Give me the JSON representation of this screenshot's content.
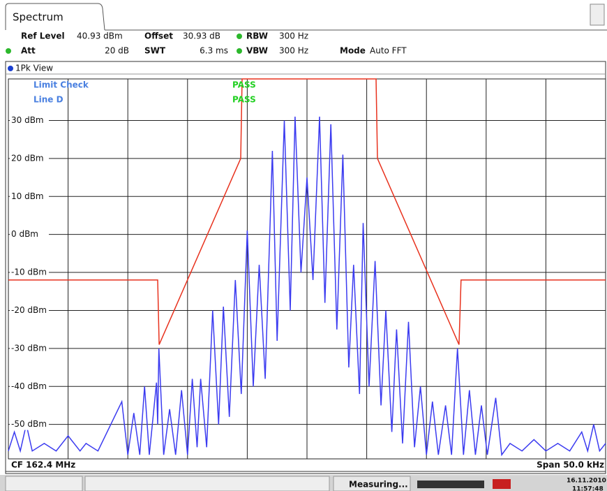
{
  "header": {
    "tab": "Spectrum",
    "row1": [
      {
        "label": "Ref Level",
        "value": "40.93 dBm"
      },
      {
        "label": "Offset",
        "value": "30.93 dB"
      },
      {
        "label": "RBW",
        "value": "300 Hz"
      }
    ],
    "row2": [
      {
        "label": "Att",
        "value": "20 dB"
      },
      {
        "label": "SWT",
        "value": "6.3 ms"
      },
      {
        "label": "VBW",
        "value": "300 Hz"
      },
      {
        "label": "Mode",
        "value": "Auto FFT"
      }
    ],
    "view": "1Pk View"
  },
  "chart_data": {
    "type": "line",
    "annotations": [
      {
        "label": "Limit Check",
        "result": "PASS"
      },
      {
        "label": "Line D",
        "result": "PASS"
      }
    ],
    "xlim": [
      -25,
      25
    ],
    "xticks": [
      -25,
      -20,
      -15,
      -10,
      -5,
      0,
      5,
      10,
      15,
      20,
      25
    ],
    "ylim": [
      -59.07,
      40.93
    ],
    "yticks": [
      {
        "value": 30,
        "label": "30 dBm"
      },
      {
        "value": 20,
        "label": "20 dBm"
      },
      {
        "value": 10,
        "label": "10 dBm"
      },
      {
        "value": 0,
        "label": "0 dBm"
      },
      {
        "value": -10,
        "label": "-10 dBm"
      },
      {
        "value": -20,
        "label": "-20 dBm"
      },
      {
        "value": -30,
        "label": "-30 dBm"
      },
      {
        "value": -40,
        "label": "-40 dBm"
      },
      {
        "value": -50,
        "label": "-50 dBm"
      }
    ],
    "grid": true,
    "series": [
      {
        "color": "#3b3bf0",
        "x": [
          -25,
          -24.5,
          -24,
          -23.5,
          -23,
          -22,
          -21,
          -20,
          -19,
          -18.5,
          -17.5,
          -15.5,
          -15,
          -14.5,
          -14,
          -13.6,
          -13.2,
          -12.6,
          -12.5,
          -12.4,
          -12,
          -11.5,
          -11,
          -10.5,
          -10,
          -9.6,
          -9.2,
          -8.9,
          -8.4,
          -7.9,
          -7.4,
          -7,
          -6.5,
          -6,
          -5.5,
          -5,
          -4.5,
          -4,
          -3.5,
          -2.9,
          -2.5,
          -1.9,
          -1.4,
          -1,
          -0.5,
          0,
          0.5,
          1.05,
          1.5,
          2,
          2.5,
          3,
          3.5,
          3.9,
          4.4,
          4.7,
          5.2,
          5.7,
          6.2,
          6.6,
          7.1,
          7.5,
          8,
          8.5,
          9,
          9.5,
          10,
          10.5,
          11,
          11.6,
          12.1,
          12.6,
          13.1,
          13.6,
          14.1,
          14.6,
          15.1,
          15.8,
          16.3,
          17,
          18,
          19,
          20,
          21,
          22,
          23,
          23.5,
          24,
          24.5,
          25
        ],
        "values": [
          -57,
          -52,
          -57,
          -50,
          -57,
          -55,
          -57,
          -53,
          -57,
          -55,
          -57,
          -44,
          -58,
          -47,
          -58,
          -40,
          -58,
          -39,
          -50,
          -30,
          -58,
          -46,
          -58,
          -41,
          -58,
          -38,
          -56,
          -38,
          -56,
          -20,
          -50,
          -19,
          -48,
          -12,
          -42,
          1,
          -40,
          -8,
          -38,
          22,
          -28,
          30,
          -20,
          31,
          -10,
          15,
          -12,
          31,
          -18,
          29,
          -25,
          21,
          -35,
          -8,
          -42,
          3,
          -40,
          -7,
          -45,
          -20,
          -52,
          -25,
          -55,
          -23,
          -56,
          -40,
          -58,
          -44,
          -58,
          -45,
          -58,
          -30,
          -58,
          -41,
          -58,
          -45,
          -58,
          -43,
          -58,
          -55,
          -57,
          -54,
          -57,
          -55,
          -57,
          -52,
          -57,
          -50,
          -57,
          -55
        ]
      },
      {
        "color": "#e8321e",
        "x": [
          -25,
          -12.5,
          -12.38,
          -5.55,
          -5.43,
          5.78,
          5.9,
          12.73,
          12.9,
          25
        ],
        "values": [
          -12,
          -12,
          -29,
          20,
          40.93,
          40.93,
          20,
          -29,
          -12,
          -12
        ]
      }
    ]
  },
  "footer": {
    "center_frequency": "CF 162.4 MHz",
    "span": "Span 50.0 kHz"
  },
  "status_bar": {
    "state": "Measuring...",
    "date": "16.11.2010",
    "time": "11:57:48"
  }
}
